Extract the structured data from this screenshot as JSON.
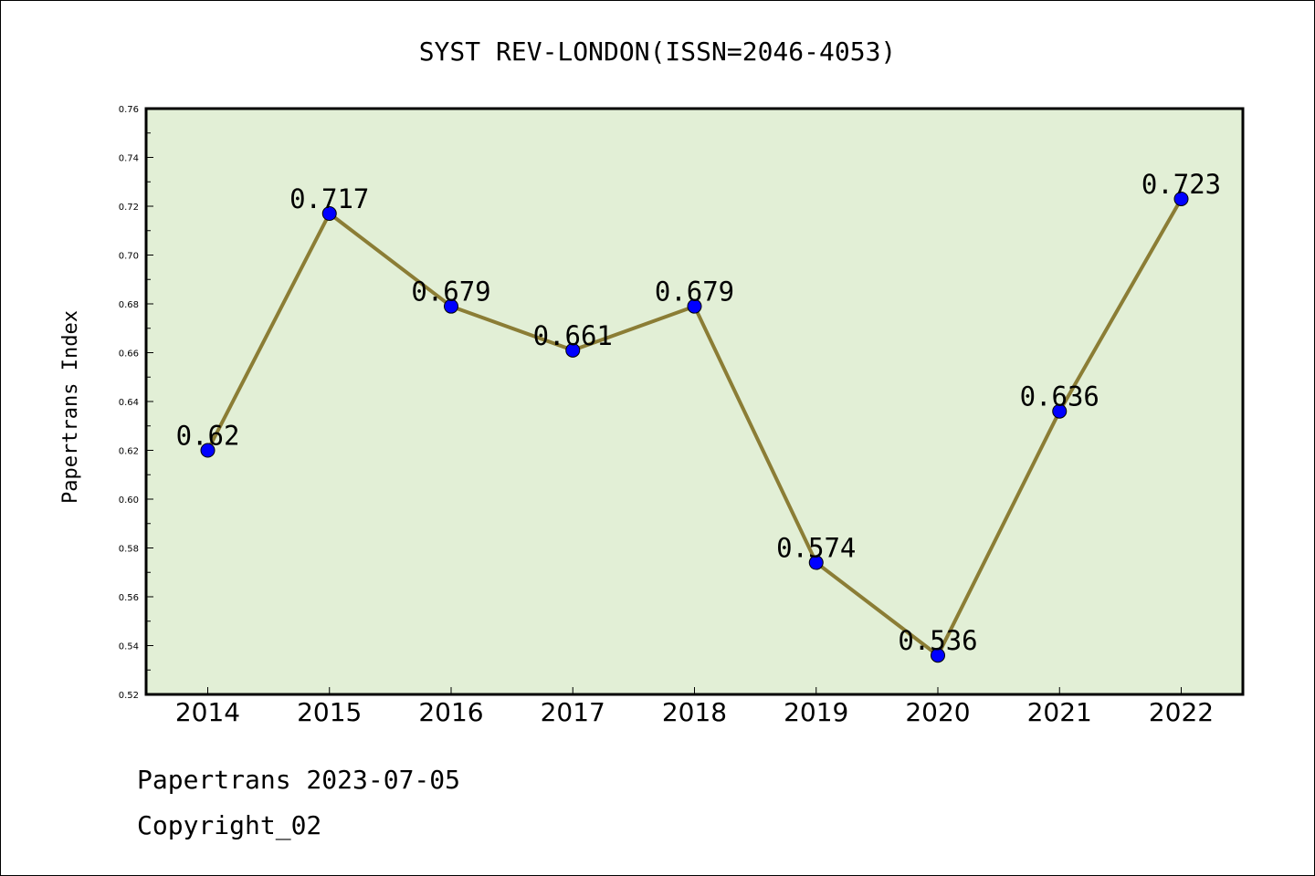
{
  "chart_data": {
    "type": "line",
    "title": "SYST REV-LONDON(ISSN=2046-4053)",
    "xlabel": "",
    "ylabel": "Papertrans Index",
    "categories": [
      "2014",
      "2015",
      "2016",
      "2017",
      "2018",
      "2019",
      "2020",
      "2021",
      "2022"
    ],
    "series": [
      {
        "values": [
          0.62,
          0.717,
          0.679,
          0.661,
          0.679,
          0.574,
          0.536,
          0.636,
          0.723
        ],
        "labels": [
          "0.62",
          "0.717",
          "0.679",
          "0.661",
          "0.679",
          "0.574",
          "0.536",
          "0.636",
          "0.723"
        ]
      }
    ],
    "ylim": [
      0.52,
      0.76
    ],
    "yticks": [
      "0.52",
      "0.54",
      "0.56",
      "0.58",
      "0.60",
      "0.62",
      "0.64",
      "0.66",
      "0.68",
      "0.70",
      "0.72",
      "0.74",
      "0.76"
    ],
    "grid": false,
    "colors": {
      "plot_background": "#e2efd6",
      "line": "#8b7d35",
      "marker": "#0000ff"
    }
  },
  "footer": {
    "line1": "Papertrans 2023-07-05",
    "line2": "Copyright_02"
  }
}
